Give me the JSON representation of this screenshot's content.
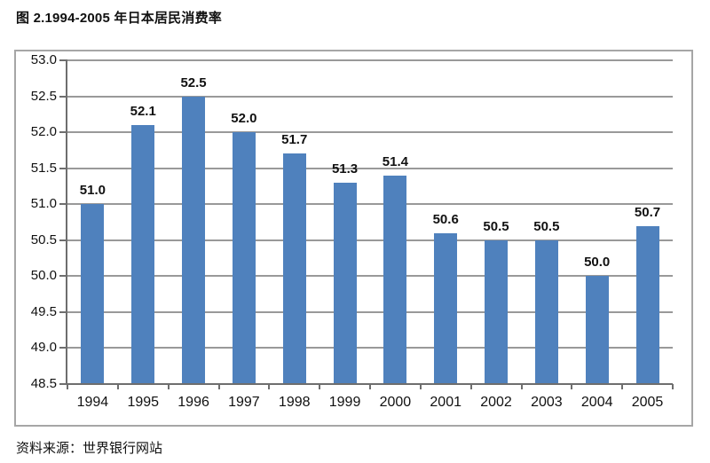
{
  "title": "图 2.1994-2005 年日本居民消费率",
  "source": "资料来源：世界银行网站",
  "colors": {
    "bar": "#4f81bd",
    "gridline": "#999999",
    "axis": "#6e6e6e",
    "frame_border": "#a6a6a6",
    "text": "#111111"
  },
  "chart_data": {
    "type": "bar",
    "title": "图 2.1994-2005 年日本居民消费率",
    "categories": [
      "1994",
      "1995",
      "1996",
      "1997",
      "1998",
      "1999",
      "2000",
      "2001",
      "2002",
      "2003",
      "2004",
      "2005"
    ],
    "values": [
      51.0,
      52.1,
      52.5,
      52.0,
      51.7,
      51.3,
      51.4,
      50.6,
      50.5,
      50.5,
      50.0,
      50.7
    ],
    "value_labels": [
      "51.0",
      "52.1",
      "52.5",
      "52.0",
      "51.7",
      "51.3",
      "51.4",
      "50.6",
      "50.5",
      "50.5",
      "50.0",
      "50.7"
    ],
    "xlabel": "",
    "ylabel": "",
    "ylim": [
      48.5,
      53.0
    ],
    "ytick_step": 0.5,
    "ytick_labels": [
      "53.0",
      "52.5",
      "52.0",
      "51.5",
      "51.0",
      "50.5",
      "50.0",
      "49.5",
      "49.0",
      "48.5"
    ],
    "grid": true,
    "legend": false,
    "source": "资料来源：世界银行网站"
  }
}
